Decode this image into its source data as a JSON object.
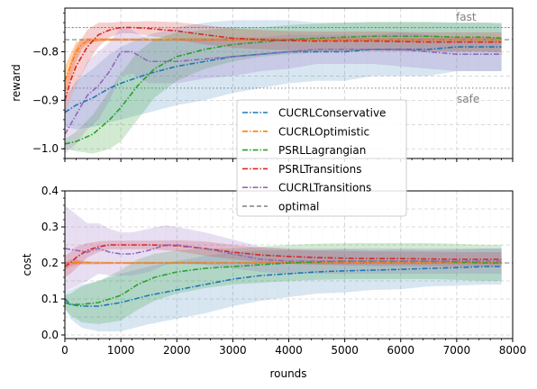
{
  "chart_data": [
    {
      "type": "line",
      "ylabel": "reward",
      "xlim": [
        0,
        8000
      ],
      "ylim": [
        -1.02,
        -0.71
      ],
      "yticks": [
        -1.0,
        -0.9,
        -0.8
      ],
      "ytick_labels": [
        "−1.0",
        "−0.9",
        "−0.8"
      ],
      "grid": true,
      "annotations": [
        {
          "text": "fast",
          "x": 7000,
          "y": -0.735
        },
        {
          "text": "safe",
          "x": 7000,
          "y": -0.902
        }
      ],
      "reference_lines": [
        {
          "y": -0.75,
          "style": "dotted",
          "color": "#808080"
        },
        {
          "y": -0.875,
          "style": "dotted",
          "color": "#808080"
        },
        {
          "y": -0.775,
          "style": "dashed",
          "color": "#808080"
        }
      ],
      "series": [
        {
          "name": "CUCRLConservative",
          "color": "#1f77b4",
          "x": [
            0,
            200,
            500,
            800,
            1000,
            1500,
            2000,
            2500,
            3000,
            3500,
            4000,
            4500,
            5000,
            5500,
            6000,
            6500,
            7000,
            7500,
            7800
          ],
          "values": [
            -0.925,
            -0.91,
            -0.895,
            -0.875,
            -0.865,
            -0.845,
            -0.83,
            -0.82,
            -0.81,
            -0.805,
            -0.8,
            -0.8,
            -0.8,
            -0.795,
            -0.795,
            -0.795,
            -0.79,
            -0.79,
            -0.79
          ],
          "band": [
            0.03,
            0.05,
            0.06,
            0.07,
            0.075,
            0.08,
            0.08,
            0.08,
            0.075,
            0.07,
            0.065,
            0.06,
            0.06,
            0.055,
            0.055,
            0.055,
            0.05,
            0.05,
            0.05
          ]
        },
        {
          "name": "CUCRLOptimistic",
          "color": "#ff7f0e",
          "x": [
            0,
            100,
            200,
            300,
            400,
            500,
            700,
            1000,
            1500,
            2000,
            3000,
            4000,
            5000,
            6000,
            7000,
            7800
          ],
          "values": [
            -0.86,
            -0.83,
            -0.8,
            -0.785,
            -0.778,
            -0.776,
            -0.775,
            -0.775,
            -0.775,
            -0.775,
            -0.775,
            -0.775,
            -0.775,
            -0.775,
            -0.775,
            -0.775
          ],
          "band": [
            0.03,
            0.025,
            0.02,
            0.01,
            0.006,
            0.004,
            0.003,
            0.003,
            0.003,
            0.003,
            0.003,
            0.003,
            0.003,
            0.003,
            0.003,
            0.003
          ]
        },
        {
          "name": "PSRLLagrangian",
          "color": "#2ca02c",
          "x": [
            0,
            200,
            500,
            800,
            1000,
            1300,
            1600,
            2000,
            2500,
            3000,
            3500,
            4000,
            4500,
            5000,
            5500,
            6000,
            6500,
            7000,
            7500,
            7800
          ],
          "values": [
            -0.99,
            -0.985,
            -0.97,
            -0.94,
            -0.915,
            -0.87,
            -0.835,
            -0.81,
            -0.795,
            -0.785,
            -0.78,
            -0.775,
            -0.772,
            -0.77,
            -0.768,
            -0.768,
            -0.768,
            -0.77,
            -0.77,
            -0.772
          ],
          "band": [
            0.01,
            0.02,
            0.04,
            0.06,
            0.07,
            0.07,
            0.06,
            0.05,
            0.04,
            0.035,
            0.03,
            0.03,
            0.03,
            0.03,
            0.03,
            0.03,
            0.03,
            0.03,
            0.03,
            0.03
          ]
        },
        {
          "name": "PSRLTransitions",
          "color": "#d62728",
          "x": [
            0,
            100,
            200,
            400,
            600,
            800,
            1000,
            1200,
            1500,
            2000,
            2500,
            3000,
            3500,
            4000,
            4500,
            5000,
            5500,
            6000,
            6500,
            7000,
            7500,
            7800
          ],
          "values": [
            -0.9,
            -0.86,
            -0.83,
            -0.79,
            -0.765,
            -0.755,
            -0.75,
            -0.75,
            -0.752,
            -0.757,
            -0.765,
            -0.772,
            -0.775,
            -0.777,
            -0.778,
            -0.778,
            -0.778,
            -0.779,
            -0.78,
            -0.78,
            -0.78,
            -0.78
          ],
          "band": [
            0.03,
            0.04,
            0.04,
            0.035,
            0.025,
            0.015,
            0.012,
            0.012,
            0.015,
            0.018,
            0.02,
            0.02,
            0.02,
            0.02,
            0.02,
            0.02,
            0.02,
            0.02,
            0.02,
            0.02,
            0.02,
            0.02
          ]
        },
        {
          "name": "CUCRLTransitions",
          "color": "#9467bd",
          "x": [
            0,
            200,
            400,
            600,
            800,
            1000,
            1200,
            1500,
            2000,
            2500,
            3000,
            3500,
            4000,
            4500,
            5000,
            5500,
            6000,
            6500,
            7000,
            7500,
            7800
          ],
          "values": [
            -0.97,
            -0.93,
            -0.89,
            -0.87,
            -0.84,
            -0.8,
            -0.8,
            -0.82,
            -0.82,
            -0.815,
            -0.81,
            -0.805,
            -0.8,
            -0.795,
            -0.795,
            -0.795,
            -0.795,
            -0.8,
            -0.805,
            -0.805,
            -0.805
          ],
          "band": [
            0.04,
            0.06,
            0.07,
            0.07,
            0.06,
            0.05,
            0.045,
            0.045,
            0.045,
            0.04,
            0.04,
            0.035,
            0.035,
            0.03,
            0.03,
            0.03,
            0.035,
            0.035,
            0.035,
            0.035,
            0.035
          ]
        }
      ]
    },
    {
      "type": "line",
      "ylabel": "cost",
      "xlabel": "rounds",
      "xlim": [
        0,
        8000
      ],
      "ylim": [
        -0.01,
        0.4
      ],
      "xticks": [
        0,
        1000,
        2000,
        3000,
        4000,
        5000,
        6000,
        7000,
        8000
      ],
      "xtick_labels": [
        "0",
        "1000",
        "2000",
        "3000",
        "4000",
        "5000",
        "6000",
        "7000",
        "8000"
      ],
      "yticks": [
        0.0,
        0.1,
        0.2,
        0.3,
        0.4
      ],
      "ytick_labels": [
        "0.0",
        "0.1",
        "0.2",
        "0.3",
        "0.4"
      ],
      "grid": true,
      "legend_position": "upper-center",
      "series": [
        {
          "name": "CUCRLConservative",
          "color": "#1f77b4",
          "x": [
            0,
            100,
            300,
            600,
            1000,
            1500,
            2000,
            2500,
            3000,
            3500,
            4000,
            4500,
            5000,
            5500,
            6000,
            6500,
            7000,
            7500,
            7800
          ],
          "values": [
            0.1,
            0.085,
            0.08,
            0.08,
            0.09,
            0.11,
            0.125,
            0.14,
            0.155,
            0.165,
            0.17,
            0.175,
            0.178,
            0.18,
            0.182,
            0.185,
            0.187,
            0.19,
            0.19
          ],
          "band": [
            0.02,
            0.04,
            0.06,
            0.07,
            0.08,
            0.08,
            0.08,
            0.08,
            0.075,
            0.07,
            0.065,
            0.06,
            0.06,
            0.055,
            0.055,
            0.05,
            0.05,
            0.05,
            0.05
          ]
        },
        {
          "name": "CUCRLOptimistic",
          "color": "#ff7f0e",
          "x": [
            0,
            100,
            200,
            300,
            500,
            1000,
            2000,
            3000,
            4000,
            5000,
            6000,
            7000,
            7800
          ],
          "values": [
            0.19,
            0.2,
            0.202,
            0.201,
            0.2,
            0.2,
            0.2,
            0.2,
            0.2,
            0.2,
            0.2,
            0.2,
            0.2
          ],
          "band": [
            0.01,
            0.01,
            0.008,
            0.005,
            0.004,
            0.003,
            0.003,
            0.003,
            0.003,
            0.003,
            0.003,
            0.003,
            0.003
          ]
        },
        {
          "name": "PSRLLagrangian",
          "color": "#2ca02c",
          "x": [
            0,
            100,
            300,
            600,
            1000,
            1300,
            1600,
            2000,
            2500,
            3000,
            3500,
            4000,
            4500,
            5000,
            5500,
            6000,
            6500,
            7000,
            7500,
            7800
          ],
          "values": [
            0.09,
            0.085,
            0.085,
            0.09,
            0.11,
            0.14,
            0.16,
            0.175,
            0.185,
            0.19,
            0.195,
            0.2,
            0.203,
            0.205,
            0.205,
            0.205,
            0.205,
            0.203,
            0.2,
            0.2
          ],
          "band": [
            0.02,
            0.03,
            0.05,
            0.06,
            0.07,
            0.07,
            0.065,
            0.06,
            0.055,
            0.05,
            0.05,
            0.05,
            0.05,
            0.05,
            0.05,
            0.05,
            0.05,
            0.05,
            0.05,
            0.05
          ]
        },
        {
          "name": "PSRLTransitions",
          "color": "#d62728",
          "x": [
            0,
            100,
            200,
            400,
            600,
            800,
            1000,
            1500,
            2000,
            2500,
            3000,
            3500,
            4000,
            4500,
            5000,
            5500,
            6000,
            6500,
            7000,
            7500,
            7800
          ],
          "values": [
            0.19,
            0.2,
            0.215,
            0.235,
            0.245,
            0.25,
            0.25,
            0.25,
            0.248,
            0.24,
            0.23,
            0.222,
            0.218,
            0.215,
            0.213,
            0.212,
            0.212,
            0.211,
            0.21,
            0.21,
            0.21
          ],
          "band": [
            0.03,
            0.03,
            0.03,
            0.02,
            0.015,
            0.012,
            0.012,
            0.012,
            0.015,
            0.02,
            0.02,
            0.02,
            0.02,
            0.02,
            0.02,
            0.02,
            0.02,
            0.02,
            0.02,
            0.02,
            0.02
          ]
        },
        {
          "name": "CUCRLTransitions",
          "color": "#9467bd",
          "x": [
            0,
            200,
            400,
            600,
            800,
            1000,
            1200,
            1500,
            1800,
            2000,
            2500,
            3000,
            3500,
            4000,
            4500,
            5000,
            5500,
            6000,
            6500,
            7000,
            7500,
            7800
          ],
          "values": [
            0.24,
            0.235,
            0.23,
            0.24,
            0.23,
            0.225,
            0.225,
            0.235,
            0.25,
            0.25,
            0.24,
            0.225,
            0.21,
            0.205,
            0.205,
            0.205,
            0.205,
            0.205,
            0.205,
            0.205,
            0.205,
            0.205
          ],
          "band": [
            0.12,
            0.1,
            0.08,
            0.07,
            0.065,
            0.06,
            0.06,
            0.06,
            0.055,
            0.05,
            0.045,
            0.04,
            0.035,
            0.035,
            0.035,
            0.035,
            0.035,
            0.035,
            0.035,
            0.035,
            0.035,
            0.035
          ]
        }
      ],
      "reference_lines": [
        {
          "y": 0.2,
          "style": "dashed",
          "color": "#808080"
        }
      ]
    }
  ],
  "legend": [
    {
      "label": "CUCRLConservative",
      "color": "#1f77b4",
      "style": "dashdot"
    },
    {
      "label": "CUCRLOptimistic",
      "color": "#ff7f0e",
      "style": "dashdot"
    },
    {
      "label": "PSRLLagrangian",
      "color": "#2ca02c",
      "style": "dashdot"
    },
    {
      "label": "PSRLTransitions",
      "color": "#d62728",
      "style": "dashdot"
    },
    {
      "label": "CUCRLTransitions",
      "color": "#9467bd",
      "style": "dashdot"
    },
    {
      "label": "optimal",
      "color": "#808080",
      "style": "dashed"
    }
  ]
}
